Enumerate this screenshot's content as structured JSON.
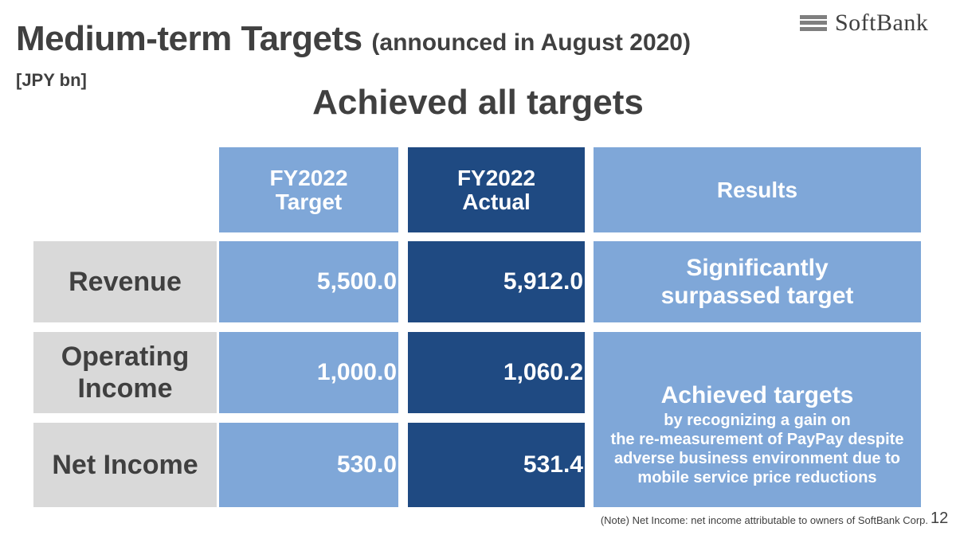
{
  "header": {
    "title": "Medium-term Targets",
    "title_note": "(announced in August 2020)",
    "unit": "[JPY bn]",
    "headline": "Achieved all targets",
    "logo_text": "SoftBank"
  },
  "table": {
    "columns": [
      "FY2022\nTarget",
      "FY2022\nActual",
      "Results"
    ],
    "rows": [
      {
        "label": "Revenue",
        "target": "5,500.0",
        "actual": "5,912.0"
      },
      {
        "label": "Operating\nIncome",
        "target": "1,000.0",
        "actual": "1,060.2"
      },
      {
        "label": "Net Income",
        "target": "530.0",
        "actual": "531.4"
      }
    ],
    "results": {
      "revenue": "Significantly\nsurpassed target",
      "income_head": "Achieved targets",
      "income_body": "by recognizing a gain on\nthe re-measurement of PayPay despite\nadverse business environment due to\nmobile service price reductions"
    }
  },
  "footer": {
    "note": "(Note) Net Income: net income attributable to owners of SoftBank Corp.",
    "page_number": "12"
  },
  "colors": {
    "light_blue": "#7fa7d8",
    "dark_blue": "#1f4a82",
    "grey": "#d9d9d9",
    "text": "#404040"
  }
}
